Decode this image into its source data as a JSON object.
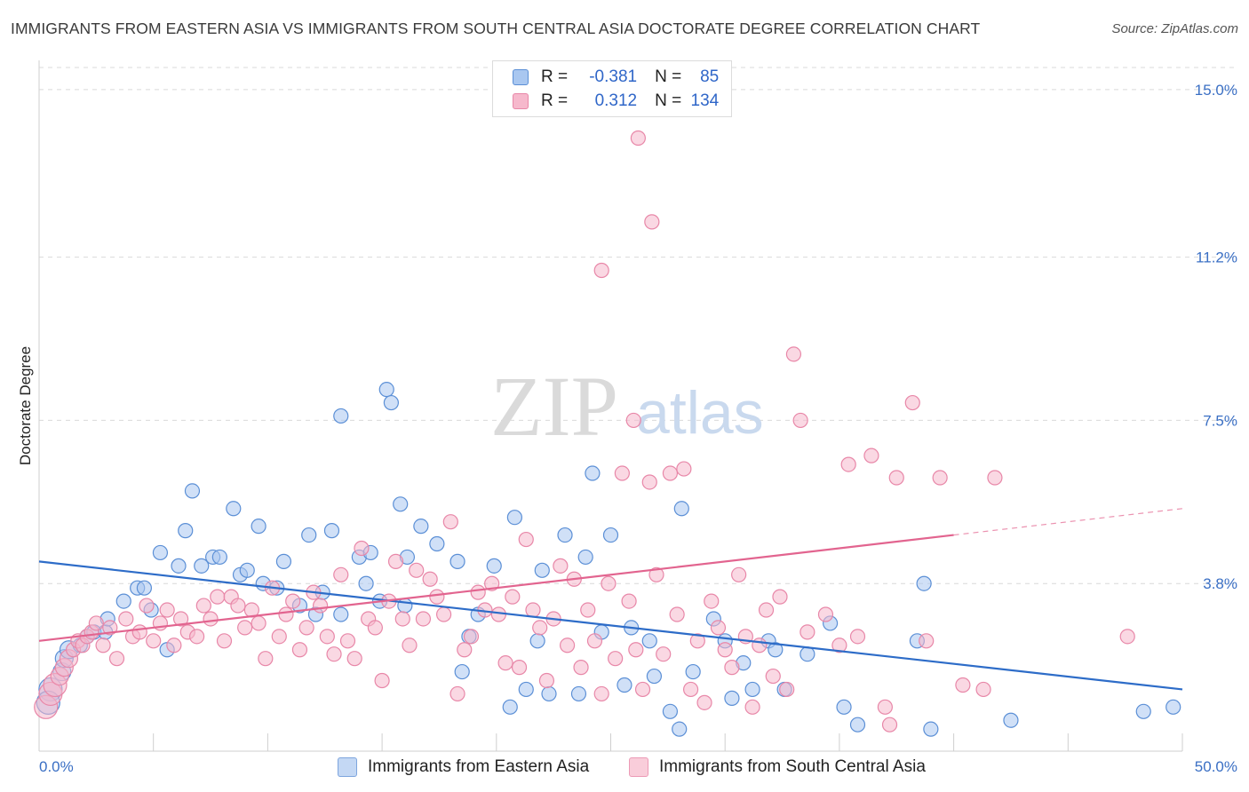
{
  "title": "IMMIGRANTS FROM EASTERN ASIA VS IMMIGRANTS FROM SOUTH CENTRAL ASIA DOCTORATE DEGREE CORRELATION CHART",
  "source": "Source: ZipAtlas.com",
  "watermark": {
    "zip": "ZIP",
    "atlas": "atlas"
  },
  "legend": {
    "r_label": "R =",
    "n_label": "N =",
    "rows": [
      {
        "r": "-0.381",
        "n": "85"
      },
      {
        "r": "0.312",
        "n": "134"
      }
    ]
  },
  "bottom_legend": [
    "Immigrants from Eastern Asia",
    "Immigrants from South Central Asia"
  ],
  "colors": {
    "blue_fill": "#a9c7f0",
    "blue_stroke": "#5b8fd6",
    "blue_line": "#2d6cc8",
    "pink_fill": "#f6b8cc",
    "pink_stroke": "#e887a8",
    "pink_line": "#e2648f",
    "tick_text": "#3a6fc4",
    "grid": "#d9d9d9"
  },
  "chart_data": {
    "type": "scatter",
    "title": "IMMIGRANTS FROM EASTERN ASIA VS IMMIGRANTS FROM SOUTH CENTRAL ASIA DOCTORATE DEGREE CORRELATION CHART",
    "xlabel": "",
    "ylabel": "Doctorate Degree",
    "xlim": [
      0,
      50
    ],
    "ylim": [
      0,
      15.5
    ],
    "x_tick_labels": [
      "0.0%",
      "50.0%"
    ],
    "y_ticks": [
      3.8,
      7.5,
      11.2,
      15.0
    ],
    "y_tick_labels": [
      "3.8%",
      "7.5%",
      "11.2%",
      "15.0%"
    ],
    "grid": true,
    "legend_position": "top-center",
    "series": [
      {
        "name": "Immigrants from Eastern Asia",
        "color": "#5b8fd6",
        "r": -0.381,
        "n": 85,
        "trend": {
          "x": [
            0,
            50
          ],
          "y": [
            4.3,
            1.4
          ]
        },
        "points": [
          [
            0.5,
            1.4
          ],
          [
            0.4,
            1.1
          ],
          [
            1.0,
            1.8
          ],
          [
            1.1,
            2.1
          ],
          [
            1.3,
            2.3
          ],
          [
            1.8,
            2.4
          ],
          [
            2.1,
            2.6
          ],
          [
            2.4,
            2.7
          ],
          [
            2.9,
            2.7
          ],
          [
            3.0,
            3.0
          ],
          [
            3.7,
            3.4
          ],
          [
            4.3,
            3.7
          ],
          [
            4.6,
            3.7
          ],
          [
            4.9,
            3.2
          ],
          [
            5.3,
            4.5
          ],
          [
            5.6,
            2.3
          ],
          [
            6.1,
            4.2
          ],
          [
            6.4,
            5.0
          ],
          [
            6.7,
            5.9
          ],
          [
            7.1,
            4.2
          ],
          [
            7.6,
            4.4
          ],
          [
            7.9,
            4.4
          ],
          [
            8.5,
            5.5
          ],
          [
            8.8,
            4.0
          ],
          [
            9.1,
            4.1
          ],
          [
            9.6,
            5.1
          ],
          [
            9.8,
            3.8
          ],
          [
            10.4,
            3.7
          ],
          [
            10.7,
            4.3
          ],
          [
            11.4,
            3.3
          ],
          [
            11.8,
            4.9
          ],
          [
            12.1,
            3.1
          ],
          [
            12.4,
            3.6
          ],
          [
            12.8,
            5.0
          ],
          [
            13.2,
            3.1
          ],
          [
            13.2,
            7.6
          ],
          [
            14.0,
            4.4
          ],
          [
            14.3,
            3.8
          ],
          [
            14.5,
            4.5
          ],
          [
            14.9,
            3.4
          ],
          [
            15.2,
            8.2
          ],
          [
            15.4,
            7.9
          ],
          [
            15.8,
            5.6
          ],
          [
            16.0,
            3.3
          ],
          [
            16.1,
            4.4
          ],
          [
            16.7,
            5.1
          ],
          [
            17.4,
            4.7
          ],
          [
            18.3,
            4.3
          ],
          [
            18.5,
            1.8
          ],
          [
            18.8,
            2.6
          ],
          [
            19.2,
            3.1
          ],
          [
            19.9,
            4.2
          ],
          [
            20.6,
            1.0
          ],
          [
            20.8,
            5.3
          ],
          [
            21.3,
            1.4
          ],
          [
            21.8,
            2.5
          ],
          [
            22.0,
            4.1
          ],
          [
            22.3,
            1.3
          ],
          [
            23.0,
            4.9
          ],
          [
            23.6,
            1.3
          ],
          [
            23.9,
            4.4
          ],
          [
            24.2,
            6.3
          ],
          [
            24.6,
            2.7
          ],
          [
            25.0,
            4.9
          ],
          [
            25.6,
            1.5
          ],
          [
            25.9,
            2.8
          ],
          [
            26.7,
            2.5
          ],
          [
            26.9,
            1.7
          ],
          [
            27.6,
            0.9
          ],
          [
            28.0,
            0.5
          ],
          [
            28.1,
            5.5
          ],
          [
            28.6,
            1.8
          ],
          [
            29.5,
            3.0
          ],
          [
            30.0,
            2.5
          ],
          [
            30.3,
            1.2
          ],
          [
            30.8,
            2.0
          ],
          [
            31.2,
            1.4
          ],
          [
            31.9,
            2.5
          ],
          [
            32.2,
            2.3
          ],
          [
            32.6,
            1.4
          ],
          [
            33.6,
            2.2
          ],
          [
            34.6,
            2.9
          ],
          [
            35.2,
            1.0
          ],
          [
            35.8,
            0.6
          ],
          [
            38.4,
            2.5
          ],
          [
            38.7,
            3.8
          ],
          [
            39.0,
            0.5
          ],
          [
            42.5,
            0.7
          ],
          [
            48.3,
            0.9
          ],
          [
            49.6,
            1.0
          ]
        ]
      },
      {
        "name": "Immigrants from South Central Asia",
        "color": "#e887a8",
        "r": 0.312,
        "n": 134,
        "trend": {
          "x": [
            0,
            40
          ],
          "y": [
            2.5,
            4.9
          ]
        },
        "trend_dashed": {
          "x": [
            40,
            50
          ],
          "y": [
            4.9,
            5.5
          ]
        },
        "points": [
          [
            0.3,
            1.0
          ],
          [
            0.5,
            1.3
          ],
          [
            0.7,
            1.5
          ],
          [
            0.9,
            1.7
          ],
          [
            1.1,
            1.9
          ],
          [
            1.3,
            2.1
          ],
          [
            1.5,
            2.3
          ],
          [
            1.7,
            2.5
          ],
          [
            1.9,
            2.4
          ],
          [
            2.1,
            2.6
          ],
          [
            2.3,
            2.7
          ],
          [
            2.5,
            2.9
          ],
          [
            2.8,
            2.4
          ],
          [
            3.1,
            2.8
          ],
          [
            3.4,
            2.1
          ],
          [
            3.8,
            3.0
          ],
          [
            4.1,
            2.6
          ],
          [
            4.4,
            2.7
          ],
          [
            4.7,
            3.3
          ],
          [
            5.0,
            2.5
          ],
          [
            5.3,
            2.9
          ],
          [
            5.6,
            3.2
          ],
          [
            5.9,
            2.4
          ],
          [
            6.2,
            3.0
          ],
          [
            6.5,
            2.7
          ],
          [
            6.9,
            2.6
          ],
          [
            7.2,
            3.3
          ],
          [
            7.5,
            3.0
          ],
          [
            7.8,
            3.5
          ],
          [
            8.1,
            2.5
          ],
          [
            8.4,
            3.5
          ],
          [
            8.7,
            3.3
          ],
          [
            9.0,
            2.8
          ],
          [
            9.3,
            3.2
          ],
          [
            9.6,
            2.9
          ],
          [
            9.9,
            2.1
          ],
          [
            10.2,
            3.7
          ],
          [
            10.5,
            2.6
          ],
          [
            10.8,
            3.1
          ],
          [
            11.1,
            3.4
          ],
          [
            11.4,
            2.3
          ],
          [
            11.7,
            2.8
          ],
          [
            12.0,
            3.6
          ],
          [
            12.3,
            3.3
          ],
          [
            12.6,
            2.6
          ],
          [
            12.9,
            2.2
          ],
          [
            13.2,
            4.0
          ],
          [
            13.5,
            2.5
          ],
          [
            13.8,
            2.1
          ],
          [
            14.1,
            4.6
          ],
          [
            14.4,
            3.0
          ],
          [
            14.7,
            2.8
          ],
          [
            15.0,
            1.6
          ],
          [
            15.3,
            3.4
          ],
          [
            15.6,
            4.3
          ],
          [
            15.9,
            3.0
          ],
          [
            16.2,
            2.4
          ],
          [
            16.5,
            4.1
          ],
          [
            16.8,
            3.0
          ],
          [
            17.1,
            3.9
          ],
          [
            17.4,
            3.5
          ],
          [
            17.7,
            3.1
          ],
          [
            18.0,
            5.2
          ],
          [
            18.3,
            1.3
          ],
          [
            18.6,
            2.3
          ],
          [
            18.9,
            2.6
          ],
          [
            19.2,
            3.6
          ],
          [
            19.5,
            3.2
          ],
          [
            19.8,
            3.8
          ],
          [
            20.1,
            3.1
          ],
          [
            20.4,
            2.0
          ],
          [
            20.7,
            3.5
          ],
          [
            21.0,
            1.9
          ],
          [
            21.3,
            4.8
          ],
          [
            21.6,
            3.2
          ],
          [
            21.9,
            2.8
          ],
          [
            22.2,
            1.6
          ],
          [
            22.5,
            3.0
          ],
          [
            22.8,
            4.2
          ],
          [
            23.1,
            2.4
          ],
          [
            23.4,
            3.9
          ],
          [
            23.7,
            1.9
          ],
          [
            24.0,
            3.2
          ],
          [
            24.3,
            2.5
          ],
          [
            24.6,
            1.3
          ],
          [
            24.9,
            3.8
          ],
          [
            25.2,
            2.1
          ],
          [
            25.5,
            6.3
          ],
          [
            25.8,
            3.4
          ],
          [
            26.1,
            2.3
          ],
          [
            26.4,
            1.4
          ],
          [
            26.7,
            6.1
          ],
          [
            27.0,
            4.0
          ],
          [
            27.3,
            2.2
          ],
          [
            27.6,
            6.3
          ],
          [
            27.9,
            3.1
          ],
          [
            28.2,
            6.4
          ],
          [
            28.5,
            1.4
          ],
          [
            28.8,
            2.5
          ],
          [
            29.1,
            1.1
          ],
          [
            29.4,
            3.4
          ],
          [
            29.7,
            2.8
          ],
          [
            30.0,
            2.3
          ],
          [
            30.3,
            1.9
          ],
          [
            30.6,
            4.0
          ],
          [
            30.9,
            2.6
          ],
          [
            31.2,
            1.0
          ],
          [
            31.5,
            2.4
          ],
          [
            31.8,
            3.2
          ],
          [
            32.1,
            1.7
          ],
          [
            32.4,
            3.5
          ],
          [
            32.7,
            1.4
          ],
          [
            33.0,
            9.0
          ],
          [
            33.3,
            7.5
          ],
          [
            33.6,
            2.7
          ],
          [
            34.4,
            3.1
          ],
          [
            35.0,
            2.4
          ],
          [
            35.4,
            6.5
          ],
          [
            35.8,
            2.6
          ],
          [
            36.4,
            6.7
          ],
          [
            37.0,
            1.0
          ],
          [
            37.2,
            0.6
          ],
          [
            37.5,
            6.2
          ],
          [
            38.2,
            7.9
          ],
          [
            38.8,
            2.5
          ],
          [
            39.4,
            6.2
          ],
          [
            40.4,
            1.5
          ],
          [
            41.3,
            1.4
          ],
          [
            41.8,
            6.2
          ],
          [
            47.6,
            2.6
          ],
          [
            26.2,
            13.9
          ],
          [
            26.8,
            12.0
          ],
          [
            24.6,
            10.9
          ],
          [
            26.0,
            7.5
          ]
        ]
      }
    ]
  }
}
